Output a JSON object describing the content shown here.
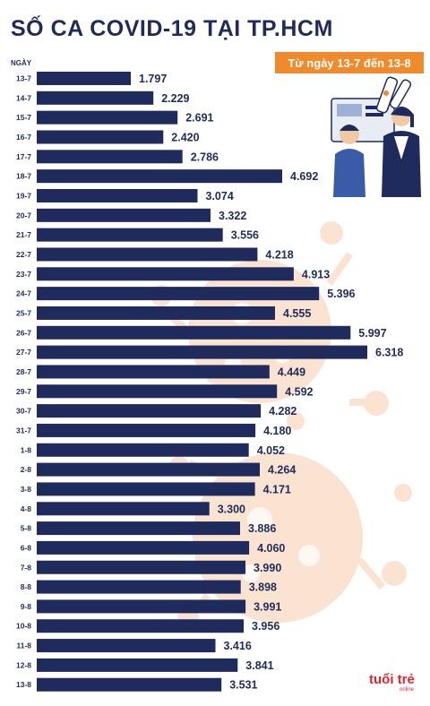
{
  "title": "SỐ CA COVID-19 TẠI TP.HCM",
  "subtitle": "Từ ngày 13-7 đến 13-8",
  "logo_text": "tuổi trẻ",
  "logo_sub": "online",
  "colors": {
    "bar": "#1f2b5c",
    "accent": "#ef8a2d",
    "virus": "#fbe3d2"
  },
  "chart_data": {
    "type": "bar",
    "orientation": "horizontal",
    "ylabel": "NGÀY",
    "categories": [
      "13-7",
      "14-7",
      "15-7",
      "16-7",
      "17-7",
      "18-7",
      "19-7",
      "20-7",
      "21-7",
      "22-7",
      "23-7",
      "24-7",
      "25-7",
      "26-7",
      "27-7",
      "28-7",
      "29-7",
      "30-7",
      "31-7",
      "1-8",
      "2-8",
      "3-8",
      "4-8",
      "5-8",
      "6-8",
      "7-8",
      "8-8",
      "9-8",
      "10-8",
      "11-8",
      "12-8",
      "13-8"
    ],
    "values": [
      1797,
      2229,
      2691,
      2420,
      2786,
      4692,
      3074,
      3322,
      3556,
      4218,
      4913,
      5396,
      4555,
      5997,
      6318,
      4449,
      4592,
      4282,
      4180,
      4052,
      4264,
      4171,
      3300,
      3886,
      4060,
      3990,
      3898,
      3991,
      3956,
      3416,
      3841,
      3531
    ],
    "value_labels": [
      "1.797",
      "2.229",
      "2.691",
      "2.420",
      "2.786",
      "4.692",
      "3.074",
      "3.322",
      "3.556",
      "4.218",
      "4.913",
      "5.396",
      "4.555",
      "5.997",
      "6.318",
      "4.449",
      "4.592",
      "4.282",
      "4.180",
      "4.052",
      "4.264",
      "4.171",
      "3.300",
      "3.886",
      "4.060",
      "3.990",
      "3.898",
      "3.991",
      "3.956",
      "3.416",
      "3.841",
      "3.531"
    ]
  }
}
